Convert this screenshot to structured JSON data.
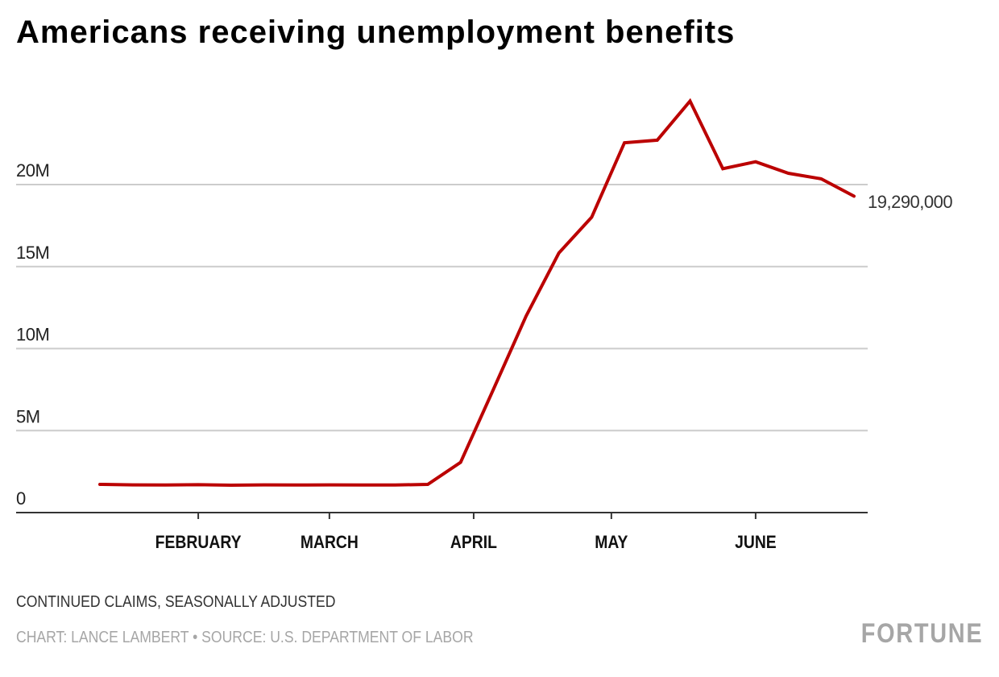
{
  "title": "Americans receiving unemployment benefits",
  "subtitle": "CONTINUED CLAIMS, SEASONALLY ADJUSTED",
  "credit": "CHART: LANCE LAMBERT • SOURCE: U.S. DEPARTMENT OF LABOR",
  "brand": "FORTUNE",
  "chart_data": {
    "type": "line",
    "title": "Americans receiving unemployment benefits",
    "xlabel": "",
    "ylabel": "",
    "ylim": [
      0,
      25
    ],
    "yticks": [
      {
        "value": 0,
        "label": "0"
      },
      {
        "value": 5,
        "label": "5M"
      },
      {
        "value": 10,
        "label": "10M"
      },
      {
        "value": 15,
        "label": "15M"
      },
      {
        "value": 20,
        "label": "20M"
      }
    ],
    "xticks": [
      {
        "week": 4,
        "label": "FEBRUARY"
      },
      {
        "week": 8,
        "label": "MARCH"
      },
      {
        "week": 12.4,
        "label": "APRIL"
      },
      {
        "week": 16.6,
        "label": "MAY"
      },
      {
        "week": 21,
        "label": "JUNE"
      }
    ],
    "xlim": [
      0,
      24
    ],
    "grid": true,
    "color": "#bb0000",
    "series": [
      {
        "name": "Continued claims (millions)",
        "x": [
          1,
          2,
          3,
          4,
          5,
          6,
          7,
          8,
          9,
          10,
          11,
          12,
          13,
          14,
          15,
          16,
          17,
          18,
          19,
          20,
          21,
          22,
          23,
          24
        ],
        "values": [
          1.72,
          1.69,
          1.68,
          1.7,
          1.67,
          1.69,
          1.68,
          1.69,
          1.68,
          1.68,
          1.72,
          3.06,
          7.5,
          11.98,
          15.83,
          18.01,
          22.55,
          22.71,
          25.09,
          20.97,
          21.39,
          20.69,
          20.35,
          19.29
        ]
      }
    ],
    "end_label": "19,290,000"
  }
}
